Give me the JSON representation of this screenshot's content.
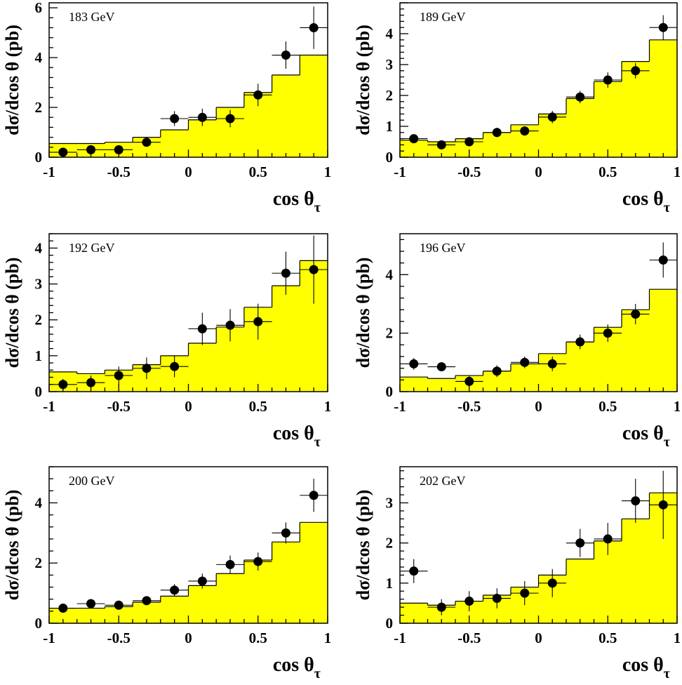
{
  "colors": {
    "fill": "#ffff00",
    "line": "#000000",
    "marker": "#000000",
    "background": "#ffffff"
  },
  "common": {
    "ylabel": "dσ/dcos θ (pb)",
    "xlabel_main": "cos θ",
    "xlabel_sub": "τ"
  },
  "chart_data": [
    {
      "type": "bar",
      "label": "183 GeV",
      "xlim": [
        -1,
        1
      ],
      "ylim": [
        0,
        6.2
      ],
      "xticks": [
        -1,
        -0.5,
        0,
        0.5,
        1
      ],
      "yticks": [
        0,
        2,
        4,
        6
      ],
      "bin_edges": [
        -1,
        -0.8,
        -0.6,
        -0.4,
        -0.2,
        0,
        0.2,
        0.4,
        0.6,
        0.8,
        1
      ],
      "prediction": [
        0.55,
        0.55,
        0.6,
        0.8,
        1.1,
        1.5,
        2.0,
        2.6,
        3.3,
        4.1
      ],
      "data_x": [
        -0.9,
        -0.7,
        -0.5,
        -0.3,
        -0.1,
        0.1,
        0.3,
        0.5,
        0.7,
        0.9
      ],
      "data_y": [
        0.2,
        0.3,
        0.3,
        0.6,
        1.55,
        1.6,
        1.55,
        2.5,
        4.1,
        5.2
      ],
      "data_err": [
        0.1,
        0.15,
        0.15,
        0.15,
        0.3,
        0.35,
        0.35,
        0.45,
        0.55,
        0.85
      ]
    },
    {
      "type": "bar",
      "label": "189 GeV",
      "xlim": [
        -1,
        1
      ],
      "ylim": [
        0,
        5.0
      ],
      "xticks": [
        -1,
        -0.5,
        0,
        0.5,
        1
      ],
      "yticks": [
        0,
        1,
        2,
        3,
        4
      ],
      "bin_edges": [
        -1,
        -0.8,
        -0.6,
        -0.4,
        -0.2,
        0,
        0.2,
        0.4,
        0.6,
        0.8,
        1
      ],
      "prediction": [
        0.55,
        0.5,
        0.6,
        0.8,
        1.05,
        1.4,
        1.9,
        2.45,
        3.1,
        3.8
      ],
      "data_x": [
        -0.9,
        -0.7,
        -0.5,
        -0.3,
        -0.1,
        0.1,
        0.3,
        0.5,
        0.7,
        0.9
      ],
      "data_y": [
        0.6,
        0.4,
        0.5,
        0.8,
        0.85,
        1.3,
        1.95,
        2.5,
        2.8,
        4.2
      ],
      "data_err": [
        0.12,
        0.1,
        0.12,
        0.15,
        0.15,
        0.2,
        0.2,
        0.25,
        0.25,
        0.4
      ]
    },
    {
      "type": "bar",
      "label": "192 GeV",
      "xlim": [
        -1,
        1
      ],
      "ylim": [
        0,
        4.4
      ],
      "xticks": [
        -1,
        -0.5,
        0,
        0.5,
        1
      ],
      "yticks": [
        0,
        1,
        2,
        3,
        4
      ],
      "bin_edges": [
        -1,
        -0.8,
        -0.6,
        -0.4,
        -0.2,
        0,
        0.2,
        0.4,
        0.6,
        0.8,
        1
      ],
      "prediction": [
        0.55,
        0.5,
        0.6,
        0.75,
        1.0,
        1.35,
        1.8,
        2.35,
        2.95,
        3.65
      ],
      "data_x": [
        -0.9,
        -0.7,
        -0.5,
        -0.3,
        -0.1,
        0.1,
        0.3,
        0.5,
        0.7,
        0.9
      ],
      "data_y": [
        0.2,
        0.25,
        0.45,
        0.65,
        0.7,
        1.75,
        1.85,
        1.95,
        3.3,
        3.4
      ],
      "data_err": [
        0.15,
        0.2,
        0.25,
        0.3,
        0.3,
        0.45,
        0.45,
        0.5,
        0.6,
        0.95
      ]
    },
    {
      "type": "bar",
      "label": "196 GeV",
      "xlim": [
        -1,
        1
      ],
      "ylim": [
        0,
        5.4
      ],
      "xticks": [
        -1,
        -0.5,
        0,
        0.5,
        1
      ],
      "yticks": [
        0,
        2,
        4
      ],
      "bin_edges": [
        -1,
        -0.8,
        -0.6,
        -0.4,
        -0.2,
        0,
        0.2,
        0.4,
        0.6,
        0.8,
        1
      ],
      "prediction": [
        0.5,
        0.45,
        0.55,
        0.7,
        0.95,
        1.3,
        1.7,
        2.2,
        2.8,
        3.5
      ],
      "data_x": [
        -0.9,
        -0.7,
        -0.5,
        -0.3,
        -0.1,
        0.1,
        0.3,
        0.5,
        0.7,
        0.9
      ],
      "data_y": [
        0.95,
        0.85,
        0.35,
        0.7,
        1.0,
        0.95,
        1.7,
        2.0,
        2.65,
        4.5
      ],
      "data_err": [
        0.2,
        0.15,
        0.2,
        0.2,
        0.2,
        0.25,
        0.25,
        0.3,
        0.35,
        0.6
      ]
    },
    {
      "type": "bar",
      "label": "200 GeV",
      "xlim": [
        -1,
        1
      ],
      "ylim": [
        0,
        5.2
      ],
      "xticks": [
        -1,
        -0.5,
        0,
        0.5,
        1
      ],
      "yticks": [
        0,
        2,
        4
      ],
      "bin_edges": [
        -1,
        -0.8,
        -0.6,
        -0.4,
        -0.2,
        0,
        0.2,
        0.4,
        0.6,
        0.8,
        1
      ],
      "prediction": [
        0.5,
        0.5,
        0.55,
        0.7,
        0.9,
        1.25,
        1.65,
        2.1,
        2.7,
        3.35
      ],
      "data_x": [
        -0.9,
        -0.7,
        -0.5,
        -0.3,
        -0.1,
        0.1,
        0.3,
        0.5,
        0.7,
        0.9
      ],
      "data_y": [
        0.5,
        0.65,
        0.6,
        0.75,
        1.1,
        1.4,
        1.95,
        2.05,
        3.0,
        4.25
      ],
      "data_err": [
        0.15,
        0.15,
        0.15,
        0.15,
        0.2,
        0.25,
        0.3,
        0.3,
        0.35,
        0.55
      ]
    },
    {
      "type": "bar",
      "label": "202 GeV",
      "xlim": [
        -1,
        1
      ],
      "ylim": [
        0,
        3.9
      ],
      "xticks": [
        -1,
        -0.5,
        0,
        0.5,
        1
      ],
      "yticks": [
        0,
        1,
        2,
        3
      ],
      "bin_edges": [
        -1,
        -0.8,
        -0.6,
        -0.4,
        -0.2,
        0,
        0.2,
        0.4,
        0.6,
        0.8,
        1
      ],
      "prediction": [
        0.5,
        0.45,
        0.55,
        0.7,
        0.9,
        1.2,
        1.6,
        2.05,
        2.6,
        3.25
      ],
      "data_x": [
        -0.9,
        -0.7,
        -0.5,
        -0.3,
        -0.1,
        0.1,
        0.3,
        0.5,
        0.7,
        0.9
      ],
      "data_y": [
        1.3,
        0.4,
        0.55,
        0.62,
        0.75,
        1.0,
        2.0,
        2.1,
        3.05,
        2.95
      ],
      "data_err": [
        0.3,
        0.2,
        0.25,
        0.25,
        0.3,
        0.35,
        0.35,
        0.4,
        0.55,
        0.85
      ]
    }
  ]
}
